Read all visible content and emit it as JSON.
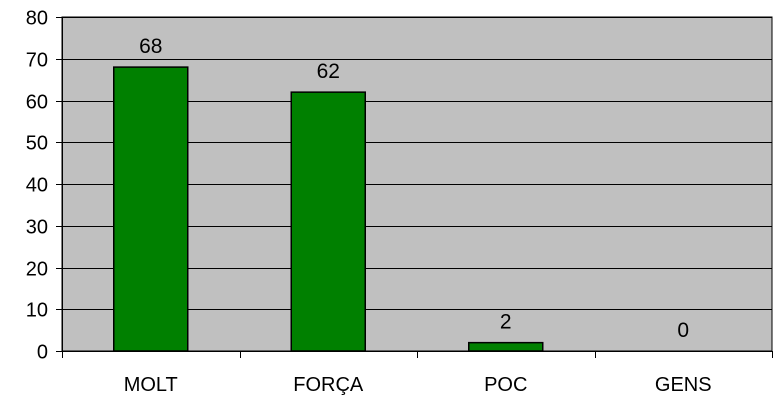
{
  "chart_data": {
    "type": "bar",
    "categories": [
      "MOLT",
      "FORÇA",
      "POC",
      "GENS"
    ],
    "values": [
      68,
      62,
      2,
      0
    ],
    "data_labels": [
      "68",
      "62",
      "2",
      "0"
    ],
    "title": "",
    "xlabel": "",
    "ylabel": "",
    "ylim": [
      0,
      80
    ],
    "yticks": [
      0,
      10,
      20,
      30,
      40,
      50,
      60,
      70,
      80
    ],
    "ytick_labels": [
      "0",
      "10",
      "20",
      "30",
      "40",
      "50",
      "60",
      "70",
      "80"
    ],
    "grid": true,
    "legend": "none",
    "colors": {
      "bar_fill": "#008000",
      "bar_stroke": "#000000",
      "plot_background": "#c0c0c0",
      "gridline": "#000000",
      "axis": "#000000"
    }
  }
}
